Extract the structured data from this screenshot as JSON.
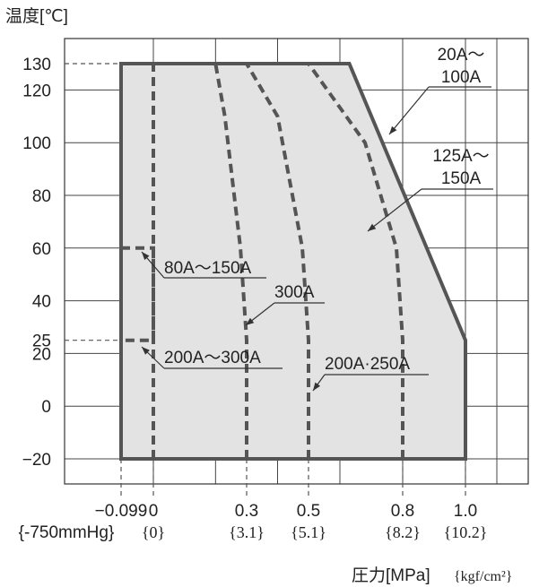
{
  "chart_data": {
    "type": "area",
    "ylabel": "温度[℃]",
    "xlabel_main": "圧力[MPa]",
    "xlabel_unit": "{kgf/cm²}",
    "y_ticks": [
      {
        "value": 130,
        "label": "130"
      },
      {
        "value": 120,
        "label": "120"
      },
      {
        "value": 100,
        "label": "100"
      },
      {
        "value": 80,
        "label": "80"
      },
      {
        "value": 60,
        "label": "60"
      },
      {
        "value": 40,
        "label": "40"
      },
      {
        "value": 25,
        "label": "25"
      },
      {
        "value": 20,
        "label": "20"
      },
      {
        "value": 0,
        "label": "0"
      },
      {
        "value": -20,
        "label": "−20"
      }
    ],
    "x_ticks": [
      {
        "value": -0.099,
        "label": "−0.099",
        "sub": "{-750mmHg}"
      },
      {
        "value": 0,
        "label": "0",
        "sub": "{0}"
      },
      {
        "value": 0.3,
        "label": "0.3",
        "sub": "{3.1}"
      },
      {
        "value": 0.5,
        "label": "0.5",
        "sub": "{5.1}"
      },
      {
        "value": 0.8,
        "label": "0.8",
        "sub": "{8.2}"
      },
      {
        "value": 1.0,
        "label": "1.0",
        "sub": "{10.2}"
      }
    ],
    "xlim": [
      -0.2,
      1.4
    ],
    "ylim": [
      -30,
      145
    ],
    "region": {
      "name": "20A〜100A",
      "points": [
        [
          -0.099,
          -20
        ],
        [
          -0.099,
          130
        ],
        [
          0.63,
          130
        ],
        [
          1.0,
          25
        ],
        [
          1.0,
          -20
        ]
      ]
    },
    "limit_lines": [
      {
        "name": "80A〜150A",
        "points": [
          [
            0,
            -20
          ],
          [
            0,
            130
          ]
        ]
      },
      {
        "name": "200A〜300A",
        "points": [
          [
            -0.099,
            60
          ],
          [
            0,
            60
          ],
          [
            0,
            25
          ],
          [
            -0.099,
            25
          ]
        ]
      },
      {
        "name": "300A",
        "points": [
          [
            0.3,
            -20
          ],
          [
            0.3,
            25
          ],
          [
            0.28,
            60
          ],
          [
            0.23,
            110
          ],
          [
            0.2,
            130
          ]
        ]
      },
      {
        "name": "200A・250A",
        "points": [
          [
            0.5,
            -20
          ],
          [
            0.5,
            25
          ],
          [
            0.48,
            60
          ],
          [
            0.4,
            110
          ],
          [
            0.3,
            130
          ]
        ]
      },
      {
        "name": "125A〜150A",
        "points": [
          [
            0.8,
            -20
          ],
          [
            0.8,
            25
          ],
          [
            0.78,
            60
          ],
          [
            0.68,
            100
          ],
          [
            0.5,
            130
          ]
        ]
      }
    ],
    "annotations": [
      {
        "name": "20A〜100A",
        "lines": [
          "20A〜",
          "100A"
        ]
      },
      {
        "name": "125A〜150A",
        "lines": [
          "125A〜",
          "150A"
        ]
      },
      {
        "name": "80A〜150A",
        "lines": [
          "80A〜150A"
        ]
      },
      {
        "name": "300A",
        "lines": [
          "300A"
        ]
      },
      {
        "name": "200A〜300A",
        "lines": [
          "200A〜300A"
        ]
      },
      {
        "name": "200A・250A",
        "lines": [
          "200A·250A"
        ]
      }
    ],
    "grid": true
  }
}
